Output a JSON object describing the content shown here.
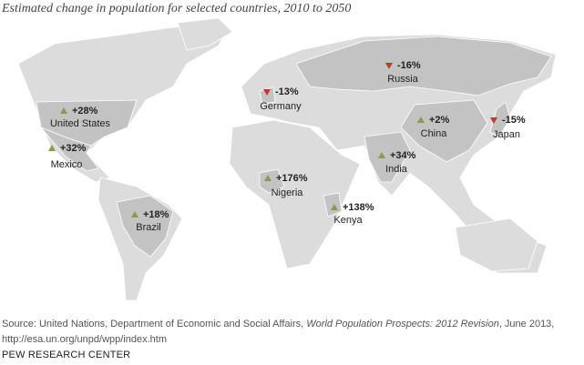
{
  "title": "Estimated change in population for selected countries, 2010 to 2050",
  "countries": [
    {
      "name": "United States",
      "value": 28,
      "value_label": "+28%"
    },
    {
      "name": "Mexico",
      "value": 32,
      "value_label": "+32%"
    },
    {
      "name": "Brazil",
      "value": 18,
      "value_label": "+18%"
    },
    {
      "name": "Germany",
      "value": -13,
      "value_label": "-13%"
    },
    {
      "name": "Nigeria",
      "value": 176,
      "value_label": "+176%"
    },
    {
      "name": "Kenya",
      "value": 138,
      "value_label": "+138%"
    },
    {
      "name": "Russia",
      "value": -16,
      "value_label": "-16%"
    },
    {
      "name": "China",
      "value": 2,
      "value_label": "+2%"
    },
    {
      "name": "India",
      "value": 34,
      "value_label": "+34%"
    },
    {
      "name": "Japan",
      "value": -15,
      "value_label": "-15%"
    }
  ],
  "source": {
    "parts": [
      "Source: United Nations, Department of Economic and Social Affairs, ",
      "World Population Prospects: 2012 Revision",
      ", June 2013,"
    ],
    "url": "http://esa.un.org/unpd/wpp/index.htm"
  },
  "footer": "PEW RESEARCH CENTER"
}
